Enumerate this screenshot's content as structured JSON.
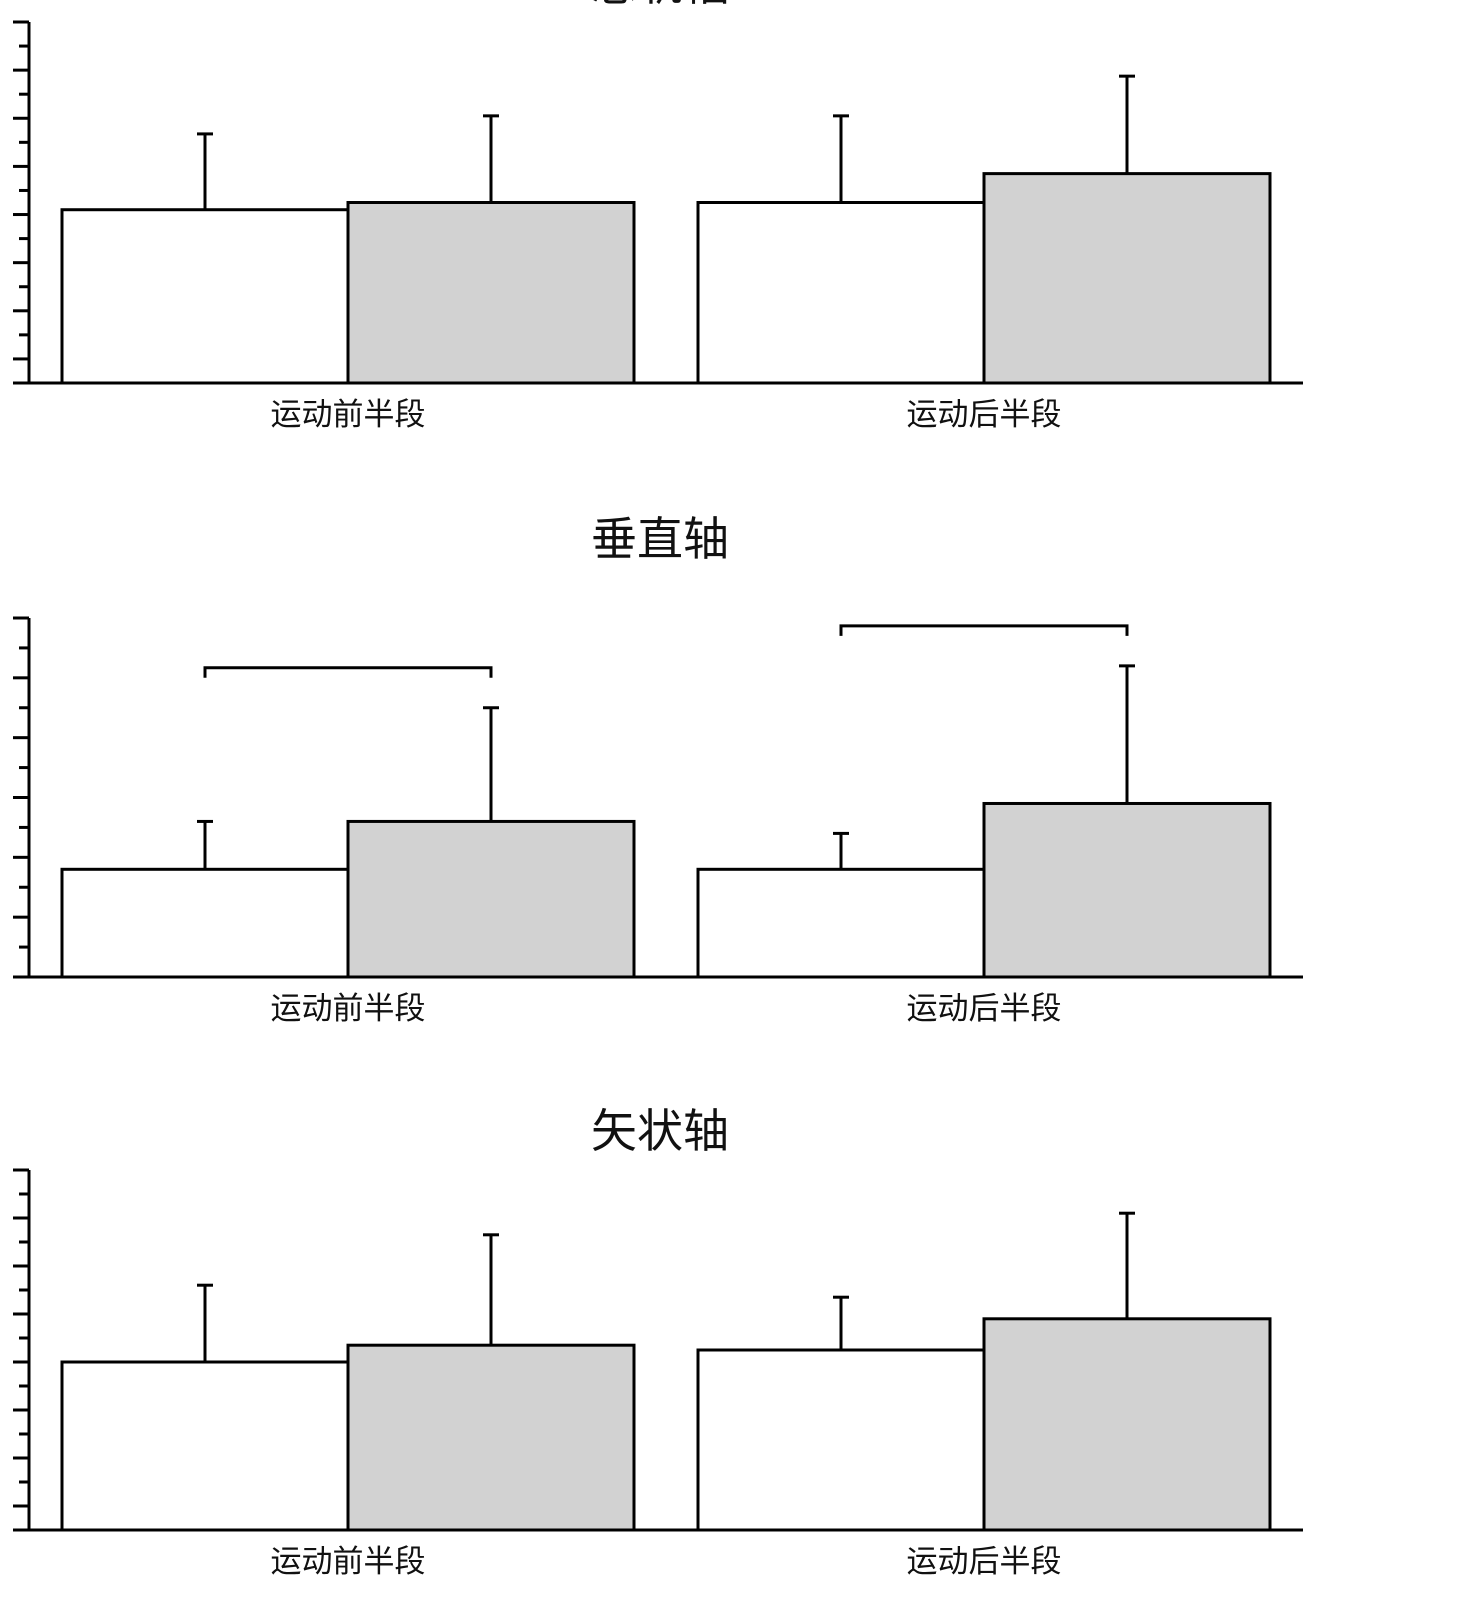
{
  "chart_data": [
    {
      "type": "bar",
      "title": "总轨幅",
      "categories": [
        "运动前半段",
        "运动后半段"
      ],
      "series": [
        {
          "values": [
            48,
            50
          ],
          "errors": [
            21,
            24
          ],
          "color": "#ffffff"
        },
        {
          "values": [
            50,
            58
          ],
          "errors": [
            24,
            27
          ],
          "color": "#d2d2d2"
        }
      ],
      "ylim": [
        0,
        100
      ],
      "yticks_minor": 15,
      "significance": []
    },
    {
      "type": "bar",
      "title": "垂直轴",
      "categories": [
        "运动前半段",
        "运动后半段"
      ],
      "series": [
        {
          "values": [
            18,
            18
          ],
          "errors": [
            8,
            6
          ],
          "color": "#ffffff"
        },
        {
          "values": [
            26,
            29
          ],
          "errors": [
            19,
            23
          ],
          "color": "#d2d2d2"
        }
      ],
      "ylim": [
        0,
        60
      ],
      "yticks_minor": 12,
      "significance": [
        {
          "category": 0,
          "label": ""
        },
        {
          "category": 1,
          "label": ""
        }
      ]
    },
    {
      "type": "bar",
      "title": "矢状轴",
      "categories": [
        "运动前半段",
        "运动后半段"
      ],
      "series": [
        {
          "values": [
            35,
            37.5
          ],
          "errors": [
            16,
            11
          ],
          "color": "#ffffff"
        },
        {
          "values": [
            38.5,
            44
          ],
          "errors": [
            23,
            22
          ],
          "color": "#d2d2d2"
        }
      ],
      "ylim": [
        0,
        75
      ],
      "yticks_minor": 15,
      "significance": []
    }
  ]
}
